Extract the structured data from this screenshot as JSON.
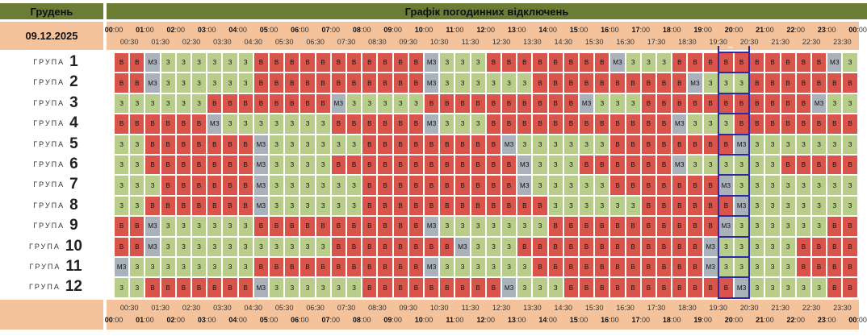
{
  "header": {
    "month": "Грудень",
    "title": "Графік погодинних відключень",
    "date": "09.12.2025"
  },
  "time_axis": {
    "hours": [
      "00",
      "01",
      "02",
      "03",
      "04",
      "05",
      "06",
      "07",
      "08",
      "09",
      "10",
      "11",
      "12",
      "13",
      "14",
      "15",
      "16",
      "17",
      "18",
      "19",
      "20",
      "21",
      "22",
      "23",
      "00"
    ],
    "hour_minutes": ":00",
    "half_hours": [
      "00:30",
      "01:30",
      "02:30",
      "03:30",
      "04:30",
      "05:30",
      "06:30",
      "07:30",
      "08:30",
      "09:30",
      "10:30",
      "11:30",
      "12:30",
      "13:30",
      "14:30",
      "15:30",
      "16:30",
      "17:30",
      "18:30",
      "19:30",
      "20:30",
      "21:30",
      "22:30",
      "23:30"
    ]
  },
  "group_word": "ГРУПА",
  "legend": {
    "B": "В",
    "Z": "З",
    "M": "МЗ"
  },
  "highlight": {
    "slot_start": 39,
    "slot_count": 2,
    "label": "•••"
  },
  "colors": {
    "outage": "#d9544a",
    "power_on": "#b9cd8b",
    "maybe": "#a9b2bb",
    "header": "#6b7d35",
    "band": "#f4c29b",
    "current": "#2a2aa8"
  },
  "groups": [
    {
      "number": "1",
      "slots": "BBMZZZZZZBBBBBBBBBBBMZZZBBBBBBBBMZZZBBBBBBBBBBMZZZZZ"
    },
    {
      "number": "2",
      "slots": "BBMZZZZZZBBBBBBBBBBBMZZZZZZBBBBBBBBBBMZZZBBBBBBBBMZZZ"
    },
    {
      "number": "3",
      "slots": "ZZZZZZBBBBBBBBMZZZZZBBBBBBBBBBMZZZBBBBBBBBBBBMZZZZZZ"
    },
    {
      "number": "4",
      "slots": "BBBBBBMZZZZZZZBBBBBBMZZZBBBBBBBBBBBBMZZZBBBBBBBBMZZZ"
    },
    {
      "number": "5",
      "slots": "ZZBBBBBBBMZZZZZZBBBBBBBBBMZZZZZZBBBBBBBBMZZZZZZZZZBB"
    },
    {
      "number": "6",
      "slots": "ZZBBBBBBBMZZZZBBBBBBBBBBBBMZZZBBBBBBMZZZZZZBBBBBBBBM"
    },
    {
      "number": "7",
      "slots": "ZZZBBBBBBMZZZZZZBBBBBBBBBBMZZZZZBBBBBBBMZZZZZZZZZZBB"
    },
    {
      "number": "8",
      "slots": "ZZBBBBBBBMZZZZZZBBBBBBBBBBBBZZZZZZBBBBBBMZZZZZZZZZBB"
    },
    {
      "number": "9",
      "slots": "BBMZZZZZZBBBBBBBBBBBMZZZZZZZBBBBBBBBBBBMZZZZZZBBBBBB"
    },
    {
      "number": "10",
      "slots": "BBMZZZZZZZZZZZBBBBBBBBMZZZBBBBBBBBBBBBMZZZZZBBBBBBMZ"
    },
    {
      "number": "11",
      "slots": "MZZZZZZZZBBBBBBBBBBBMZZZZZZBBBBBBBBBBBMZZZZZBBBBBBMZ"
    },
    {
      "number": "12",
      "slots": "ZZBBBBBBBMZZZZZZBBBBBBBBBMZZZBBBBBBBBBBBMZZZZZBBMZZZ"
    }
  ]
}
